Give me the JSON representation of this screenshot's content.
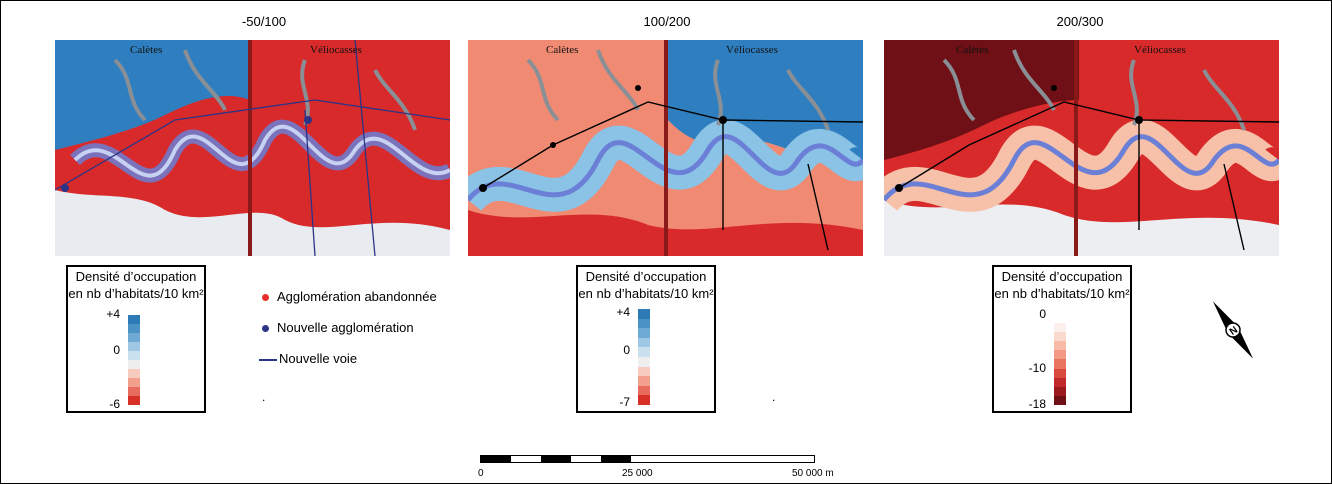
{
  "panels": [
    {
      "title": "-50/100",
      "region_left": "Calètes",
      "region_right": "Véliocasses"
    },
    {
      "title": "100/200",
      "region_left": "Calètes",
      "region_right": "Véliocasses"
    },
    {
      "title": "200/300",
      "region_left": "Calètes",
      "region_right": "Véliocasses"
    }
  ],
  "legends": [
    {
      "title_line1": "Densité d’occupation",
      "title_line2": "en nb d’habitats/10 km²",
      "ticks": [
        "+4",
        "0",
        "-6"
      ],
      "colors": [
        "#2c7bb6",
        "#4b93c5",
        "#6eaad3",
        "#9ec7e3",
        "#c9e0ef",
        "#eeeeee",
        "#f7cbbd",
        "#f2a08d",
        "#e86c5d",
        "#d73027"
      ]
    },
    {
      "title_line1": "Densité d’occupation",
      "title_line2": "en nb d’habitats/10 km²",
      "ticks": [
        "+4",
        "0",
        "-7"
      ],
      "colors": [
        "#2c7bb6",
        "#4b93c5",
        "#6eaad3",
        "#9ec7e3",
        "#c9e0ef",
        "#eeeeee",
        "#f7cbbd",
        "#f2a08d",
        "#e86c5d",
        "#d73027"
      ]
    },
    {
      "title_line1": "Densité d’occupation",
      "title_line2": "en nb d’habitats/10 km²",
      "ticks": [
        "0",
        "-10",
        "-18"
      ],
      "colors": [
        "#fdf0ec",
        "#fbd9cc",
        "#f7bba8",
        "#f29a85",
        "#e8735f",
        "#d94a3e",
        "#c0282b",
        "#9a1a20",
        "#6e1016"
      ]
    }
  ],
  "symbol_legend": {
    "abandoned": "Agglomération abandonnée",
    "new_settlement": "Nouvelle agglomération",
    "new_road": "Nouvelle voie",
    "abandoned_color": "#e8302a",
    "new_settlement_color": "#2b3486",
    "new_road_color": "#2b3486"
  },
  "scale": {
    "ticks": [
      "0",
      "25 000",
      "50 000 m"
    ]
  },
  "north_arrow": "north-arrow-icon"
}
